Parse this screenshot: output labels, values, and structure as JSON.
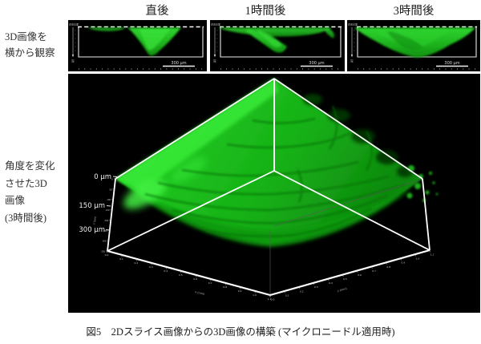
{
  "figure": {
    "caption": "図5　2Dスライス画像からの3D画像の構築 (マイクロニードル適用時)"
  },
  "colors": {
    "fluorescence_bright": "#32e032",
    "fluorescence_mid": "#1bb81b",
    "fluorescence_dark": "#0a6e0a",
    "panel_background": "#000000",
    "wireframe": "#ffffff"
  },
  "side_view_row": {
    "row_label_lines": [
      "3D画像を",
      "横から観察"
    ],
    "panels": [
      {
        "title": "直後",
        "scale_bar": "300 µm",
        "surface_axis_label": "皮膚表面",
        "depth_axis_label": "深"
      },
      {
        "title": "1時間後",
        "scale_bar": "300 µm",
        "surface_axis_label": "皮膚表面",
        "depth_axis_label": "深"
      },
      {
        "title": "3時間後",
        "scale_bar": "300 µm",
        "surface_axis_label": "皮膚表面",
        "depth_axis_label": "深"
      }
    ]
  },
  "rotated_view": {
    "row_label_lines": [
      "角度を変化",
      "させた3D",
      "画像",
      "(3時間後)"
    ],
    "z_axis": {
      "labels": [
        "0 µm",
        "150 µm",
        "300 µm"
      ],
      "unit_label": "z (µm)",
      "ticks": [
        "0",
        "50",
        "100",
        "150",
        "200",
        "250",
        "300",
        "350"
      ]
    },
    "x_axis": {
      "label": "x (mm)",
      "ticks": [
        "0.0",
        "0.1",
        "0.2",
        "0.3",
        "0.4",
        "0.5",
        "0.6",
        "0.7",
        "0.8",
        "0.9",
        "1.0",
        "1.1"
      ]
    },
    "y_axis": {
      "label": "y (mm)",
      "ticks": [
        "0.0",
        "0.1",
        "0.2",
        "0.3",
        "0.4",
        "0.5",
        "0.6",
        "0.7",
        "0.8",
        "0.9",
        "1.0",
        "1.1"
      ]
    }
  }
}
